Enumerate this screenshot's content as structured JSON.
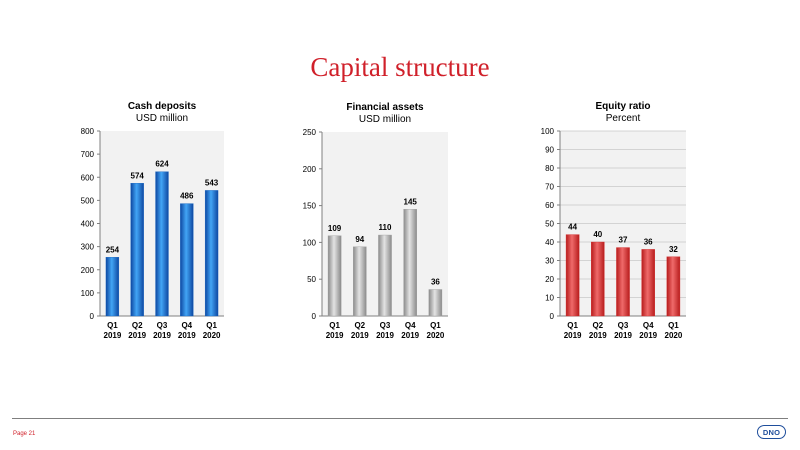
{
  "page": {
    "title": "Capital structure",
    "page_number": "Page 21",
    "logo_text": "DNO"
  },
  "chart_data": [
    {
      "type": "bar",
      "title": "Cash deposits",
      "subtitle": "USD million",
      "categories": [
        [
          "Q1",
          "2019"
        ],
        [
          "Q2",
          "2019"
        ],
        [
          "Q3",
          "2019"
        ],
        [
          "Q4",
          "2019"
        ],
        [
          "Q1",
          "2020"
        ]
      ],
      "values": [
        254,
        574,
        624,
        486,
        543
      ],
      "ylim": [
        0,
        800
      ],
      "yticks": [
        0,
        100,
        200,
        300,
        400,
        500,
        600,
        700,
        800
      ],
      "grid": false,
      "color": "#1565c0"
    },
    {
      "type": "bar",
      "title": "Financial assets",
      "subtitle": "USD million",
      "categories": [
        [
          "Q1",
          "2019"
        ],
        [
          "Q2",
          "2019"
        ],
        [
          "Q3",
          "2019"
        ],
        [
          "Q4",
          "2019"
        ],
        [
          "Q1",
          "2020"
        ]
      ],
      "values": [
        109,
        94,
        110,
        145,
        36
      ],
      "ylim": [
        0,
        250
      ],
      "yticks": [
        0,
        50,
        100,
        150,
        200,
        250
      ],
      "grid": false,
      "color": "#9e9e9e"
    },
    {
      "type": "bar",
      "title": "Equity ratio",
      "subtitle": "Percent",
      "categories": [
        [
          "Q1",
          "2019"
        ],
        [
          "Q2",
          "2019"
        ],
        [
          "Q3",
          "2019"
        ],
        [
          "Q4",
          "2019"
        ],
        [
          "Q1",
          "2020"
        ]
      ],
      "values": [
        44,
        40,
        37,
        36,
        32
      ],
      "ylim": [
        0,
        100
      ],
      "yticks": [
        0,
        10,
        20,
        30,
        40,
        50,
        60,
        70,
        80,
        90,
        100
      ],
      "grid": true,
      "color": "#d32f2f"
    }
  ]
}
